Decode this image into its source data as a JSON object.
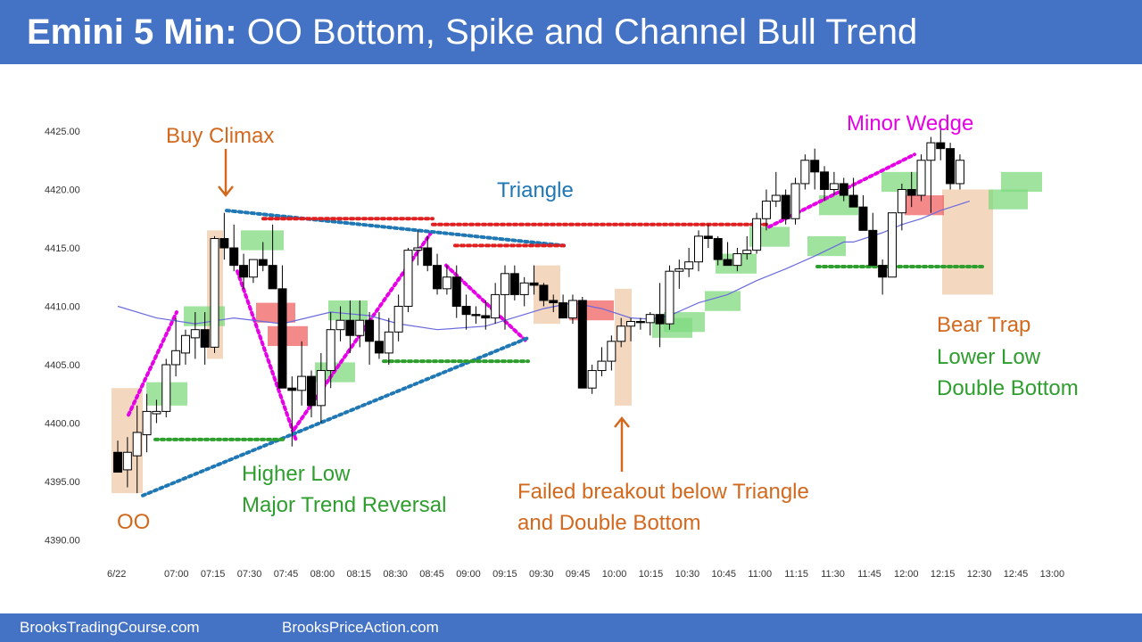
{
  "header": {
    "title_bold": "Emini 5 Min:",
    "title_rest": " OO Bottom, Spike and Channel Bull Trend"
  },
  "footer": {
    "left": "BrooksTradingCourse.com",
    "right": "BrooksPriceAction.com"
  },
  "colors": {
    "header_bg": "#4472c4",
    "orange": "#d2691e",
    "green": "#2e9e2e",
    "magenta": "#e600e6",
    "blue": "#1f77b4",
    "red": "#e02020",
    "ema": "#6a6adc",
    "green_box": "#7fd97f",
    "red_box": "#f06262",
    "tan_box": "#efc9a8"
  },
  "chart_data": {
    "type": "candlestick",
    "y_ticks": [
      "4425.00",
      "4420.00",
      "4415.00",
      "4410.00",
      "4405.00",
      "4400.00",
      "4395.00",
      "4390.00"
    ],
    "y_tick_values": [
      4425,
      4420,
      4415,
      4410,
      4405,
      4400,
      4395,
      4390
    ],
    "ylim": [
      4390,
      4425
    ],
    "x_ticks": [
      "6/22",
      "07:00",
      "07:15",
      "07:30",
      "07:45",
      "08:00",
      "08:15",
      "08:30",
      "08:45",
      "09:00",
      "09:15",
      "09:30",
      "09:45",
      "10:00",
      "10:15",
      "10:30",
      "10:45",
      "11:00",
      "11:15",
      "11:30",
      "11:45",
      "12:00",
      "12:15",
      "12:30",
      "12:45",
      "13:00"
    ],
    "bars": [
      [
        4397.5,
        4398.5,
        4396.0,
        4395.8
      ],
      [
        4396.0,
        4398.8,
        4394.5,
        4397.5
      ],
      [
        4397.2,
        4401.5,
        4394.0,
        4399.2
      ],
      [
        4399.0,
        4402.5,
        4397.5,
        4401.0
      ],
      [
        4400.8,
        4402.0,
        4400.0,
        4401.0
      ],
      [
        4401.0,
        4405.5,
        4400.5,
        4405.0
      ],
      [
        4405.0,
        4409.0,
        4404.0,
        4406.2
      ],
      [
        4406.0,
        4408.0,
        4405.0,
        4407.5
      ],
      [
        4407.3,
        4409.5,
        4405.5,
        4408.0
      ],
      [
        4408.0,
        4409.5,
        4405.0,
        4406.5
      ],
      [
        4406.5,
        4416.0,
        4406.0,
        4415.8
      ],
      [
        4415.8,
        4418.0,
        4414.0,
        4415.0
      ],
      [
        4415.0,
        4417.0,
        4413.0,
        4413.5
      ],
      [
        4413.5,
        4414.5,
        4411.5,
        4412.5
      ],
      [
        4412.5,
        4414.0,
        4412.0,
        4414.0
      ],
      [
        4414.0,
        4415.5,
        4413.0,
        4413.5
      ],
      [
        4413.5,
        4417.0,
        4412.0,
        4411.5
      ],
      [
        4411.5,
        4413.5,
        4403.0,
        4403.0
      ],
      [
        4403.0,
        4404.0,
        4398.0,
        4402.8
      ],
      [
        4402.8,
        4407.0,
        4401.5,
        4404.0
      ],
      [
        4404.0,
        4404.5,
        4400.5,
        4401.5
      ],
      [
        4401.5,
        4406.0,
        4400.0,
        4404.5
      ],
      [
        4404.5,
        4409.5,
        4403.0,
        4408.0
      ],
      [
        4408.0,
        4410.0,
        4407.0,
        4408.8
      ],
      [
        4408.8,
        4410.5,
        4406.0,
        4407.5
      ],
      [
        4407.5,
        4410.5,
        4406.5,
        4408.8
      ],
      [
        4408.8,
        4409.5,
        4405.0,
        4407.0
      ],
      [
        4407.0,
        4409.5,
        4405.5,
        4406.0
      ],
      [
        4406.0,
        4409.0,
        4405.0,
        4407.8
      ],
      [
        4407.8,
        4411.0,
        4407.0,
        4410.0
      ],
      [
        4410.0,
        4415.0,
        4409.5,
        4414.8
      ],
      [
        4414.8,
        4416.5,
        4413.5,
        4415.0
      ],
      [
        4415.0,
        4416.0,
        4413.0,
        4413.5
      ],
      [
        4413.5,
        4414.5,
        4411.0,
        4411.5
      ],
      [
        4411.5,
        4413.5,
        4411.0,
        4412.5
      ],
      [
        4412.5,
        4413.5,
        4409.0,
        4410.0
      ],
      [
        4410.0,
        4411.0,
        4408.0,
        4409.3
      ],
      [
        4409.3,
        4410.0,
        4408.5,
        4409.2
      ],
      [
        4409.2,
        4410.5,
        4408.0,
        4409.0
      ],
      [
        4409.0,
        4412.0,
        4408.5,
        4411.0
      ],
      [
        4411.0,
        4413.5,
        4408.0,
        4412.8
      ],
      [
        4412.8,
        4413.5,
        4410.5,
        4411.0
      ],
      [
        4411.0,
        4412.5,
        4410.0,
        4412.0
      ],
      [
        4412.0,
        4413.5,
        4411.0,
        4411.8
      ],
      [
        4411.8,
        4412.0,
        4410.0,
        4410.5
      ],
      [
        4410.5,
        4411.0,
        4409.5,
        4410.3
      ],
      [
        4410.3,
        4411.0,
        4409.0,
        4409.0
      ],
      [
        4409.0,
        4411.0,
        4408.5,
        4410.5
      ],
      [
        4410.5,
        4410.8,
        4403.0,
        4403.0
      ],
      [
        4403.0,
        4405.0,
        4402.5,
        4404.5
      ],
      [
        4404.5,
        4406.5,
        4404.0,
        4405.3
      ],
      [
        4405.3,
        4407.5,
        4404.5,
        4407.0
      ],
      [
        4407.0,
        4409.0,
        4406.5,
        4408.3
      ],
      [
        4408.3,
        4409.0,
        4407.0,
        4408.7
      ],
      [
        4408.7,
        4409.0,
        4408.0,
        4408.6
      ],
      [
        4408.6,
        4409.5,
        4407.5,
        4409.3
      ],
      [
        4409.3,
        4412.0,
        4406.5,
        4408.5
      ],
      [
        4408.5,
        4413.5,
        4408.0,
        4413.0
      ],
      [
        4413.0,
        4414.0,
        4411.5,
        4413.2
      ],
      [
        4413.2,
        4415.0,
        4412.5,
        4413.8
      ],
      [
        4413.8,
        4416.5,
        4413.0,
        4416.0
      ],
      [
        4416.0,
        4417.0,
        4415.0,
        4415.8
      ],
      [
        4415.8,
        4416.0,
        4413.5,
        4414.0
      ],
      [
        4414.0,
        4415.5,
        4413.5,
        4413.5
      ],
      [
        4413.5,
        4415.0,
        4413.0,
        4414.5
      ],
      [
        4414.5,
        4416.0,
        4414.0,
        4414.8
      ],
      [
        4414.8,
        4418.0,
        4414.5,
        4417.5
      ],
      [
        4417.5,
        4420.0,
        4416.5,
        4419.0
      ],
      [
        4419.0,
        4421.5,
        4418.5,
        4419.5
      ],
      [
        4419.5,
        4420.0,
        4417.0,
        4417.5
      ],
      [
        4417.5,
        4421.0,
        4417.0,
        4420.5
      ],
      [
        4420.5,
        4423.0,
        4420.0,
        4422.5
      ],
      [
        4422.5,
        4423.5,
        4420.0,
        4421.5
      ],
      [
        4421.5,
        4422.0,
        4419.0,
        4420.0
      ],
      [
        4420.0,
        4421.5,
        4419.5,
        4420.5
      ],
      [
        4420.5,
        4421.0,
        4419.0,
        4419.5
      ],
      [
        4419.5,
        4421.0,
        4418.5,
        4418.5
      ],
      [
        4418.5,
        4419.5,
        4416.5,
        4416.5
      ],
      [
        4416.5,
        4418.0,
        4413.5,
        4413.5
      ],
      [
        4413.5,
        4414.0,
        4411.0,
        4412.5
      ],
      [
        4412.5,
        4418.0,
        4412.5,
        4418.0
      ],
      [
        4418.0,
        4420.5,
        4416.5,
        4420.0
      ],
      [
        4420.0,
        4421.5,
        4418.5,
        4419.5
      ],
      [
        4419.5,
        4423.0,
        4419.0,
        4422.5
      ],
      [
        4422.5,
        4424.5,
        4418.0,
        4424.0
      ],
      [
        4424.0,
        4425.5,
        4422.5,
        4423.5
      ],
      [
        4423.5,
        4424.0,
        4420.0,
        4420.5
      ],
      [
        4420.5,
        4423.0,
        4420.0,
        4422.5
      ]
    ],
    "ema": [
      [
        4410.0,
        0
      ],
      [
        4409.0,
        4
      ],
      [
        4408.5,
        8
      ],
      [
        4409.0,
        12
      ],
      [
        4408.5,
        17
      ],
      [
        4409.5,
        22
      ],
      [
        4409.2,
        26
      ],
      [
        4408.5,
        29
      ],
      [
        4408.0,
        33
      ],
      [
        4408.3,
        38
      ],
      [
        4409.3,
        42
      ],
      [
        4409.8,
        44
      ],
      [
        4410.3,
        47
      ],
      [
        4409.8,
        50
      ],
      [
        4409.0,
        53
      ],
      [
        4408.9,
        55
      ],
      [
        4409.2,
        57
      ],
      [
        4410.3,
        60
      ],
      [
        4411.0,
        63
      ],
      [
        4412.2,
        66
      ],
      [
        4413.2,
        69
      ],
      [
        4414.3,
        72
      ],
      [
        4415.5,
        75
      ],
      [
        4415.5,
        76
      ],
      [
        4416.3,
        79
      ],
      [
        4417.0,
        81
      ],
      [
        4417.5,
        83
      ],
      [
        4418.2,
        85
      ],
      [
        4419.0,
        88
      ]
    ],
    "annotations": {
      "buy_climax": "Buy Climax",
      "triangle": "Triangle",
      "minor_wedge": "Minor Wedge",
      "oo": "OO",
      "higher_low_1": "Higher Low",
      "higher_low_2": "Major Trend Reversal",
      "failed_1": "Failed breakout below Triangle",
      "failed_2": "and Double Bottom",
      "bear_trap": "Bear Trap",
      "lower_low": "Lower Low",
      "double_bottom": "Double Bottom"
    }
  }
}
